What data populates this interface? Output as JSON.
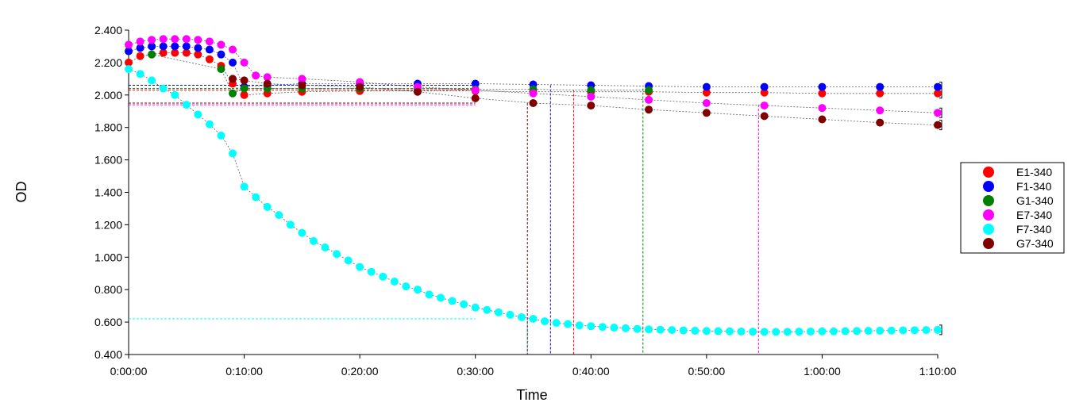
{
  "chart_data": {
    "type": "scatter",
    "title": "",
    "xlabel": "Time",
    "ylabel": "OD",
    "xlim": [
      0,
      70
    ],
    "ylim": [
      0.4,
      2.4
    ],
    "grid": false,
    "legend_position": "right",
    "x_ticks": [
      {
        "value": 0,
        "label": "0:00:00"
      },
      {
        "value": 10,
        "label": "0:10:00"
      },
      {
        "value": 20,
        "label": "0:20:00"
      },
      {
        "value": 30,
        "label": "0:30:00"
      },
      {
        "value": 40,
        "label": "0:40:00"
      },
      {
        "value": 50,
        "label": "0:50:00"
      },
      {
        "value": 60,
        "label": "1:00:00"
      },
      {
        "value": 70,
        "label": "1:10:00"
      }
    ],
    "y_ticks": [
      {
        "value": 0.4,
        "label": "0.400"
      },
      {
        "value": 0.6,
        "label": "0.600"
      },
      {
        "value": 0.8,
        "label": "0.800"
      },
      {
        "value": 1.0,
        "label": "1.000"
      },
      {
        "value": 1.2,
        "label": "1.200"
      },
      {
        "value": 1.4,
        "label": "1.400"
      },
      {
        "value": 1.6,
        "label": "1.600"
      },
      {
        "value": 1.8,
        "label": "1.800"
      },
      {
        "value": 2.0,
        "label": "2.000"
      },
      {
        "value": 2.2,
        "label": "2.200"
      },
      {
        "value": 2.4,
        "label": "2.400"
      }
    ],
    "series": [
      {
        "name": "E1-340",
        "color": "#ff0000",
        "x": [
          0,
          1,
          2,
          3,
          4,
          5,
          6,
          7,
          8,
          9,
          10,
          12,
          15,
          20,
          25,
          30,
          35,
          40,
          45,
          50,
          55,
          60,
          65,
          70
        ],
        "y": [
          2.2,
          2.24,
          2.25,
          2.26,
          2.26,
          2.26,
          2.25,
          2.22,
          2.18,
          2.07,
          2.0,
          2.01,
          2.02,
          2.025,
          2.025,
          2.025,
          2.02,
          2.02,
          2.02,
          2.015,
          2.015,
          2.01,
          2.01,
          2.01
        ],
        "threshold": 2.03,
        "threshold_x": 38.5
      },
      {
        "name": "F1-340",
        "color": "#0000ff",
        "x": [
          0,
          1,
          2,
          3,
          4,
          5,
          6,
          7,
          8,
          9,
          10,
          12,
          15,
          20,
          25,
          30,
          35,
          40,
          45,
          50,
          55,
          60,
          65,
          70
        ],
        "y": [
          2.27,
          2.29,
          2.3,
          2.3,
          2.3,
          2.3,
          2.29,
          2.28,
          2.25,
          2.2,
          2.05,
          2.06,
          2.07,
          2.07,
          2.07,
          2.07,
          2.065,
          2.06,
          2.055,
          2.05,
          2.05,
          2.05,
          2.05,
          2.05
        ],
        "threshold": 2.06,
        "threshold_x": 36.5
      },
      {
        "name": "G1-340",
        "color": "#008000",
        "x": [
          2,
          8,
          9,
          10,
          12,
          15,
          20,
          25,
          30,
          35,
          40,
          45
        ],
        "y": [
          2.25,
          2.16,
          2.01,
          2.04,
          2.04,
          2.04,
          2.04,
          2.04,
          2.035,
          2.035,
          2.03,
          2.03
        ],
        "threshold": 2.04,
        "threshold_x": 44.5
      },
      {
        "name": "E7-340",
        "color": "#ff00ff",
        "x": [
          0,
          1,
          2,
          3,
          4,
          5,
          6,
          7,
          8,
          9,
          10,
          11,
          12,
          15,
          20,
          25,
          30,
          35,
          40,
          45,
          50,
          55,
          60,
          65,
          70
        ],
        "y": [
          2.31,
          2.33,
          2.34,
          2.345,
          2.345,
          2.345,
          2.34,
          2.33,
          2.31,
          2.28,
          2.2,
          2.12,
          2.11,
          2.1,
          2.08,
          2.05,
          2.03,
          2.01,
          1.99,
          1.97,
          1.95,
          1.935,
          1.92,
          1.905,
          1.89
        ],
        "threshold": 1.94,
        "threshold_x": 54.5
      },
      {
        "name": "F7-340",
        "color": "#00ffff",
        "x": [
          0,
          1,
          2,
          3,
          4,
          5,
          6,
          7,
          8,
          9,
          10,
          11,
          12,
          13,
          14,
          15,
          16,
          17,
          18,
          19,
          20,
          21,
          22,
          23,
          24,
          25,
          26,
          27,
          28,
          29,
          30,
          31,
          32,
          33,
          34,
          35,
          36,
          37,
          38,
          39,
          40,
          41,
          42,
          43,
          44,
          45,
          46,
          47,
          48,
          49,
          50,
          51,
          52,
          53,
          54,
          55,
          56,
          57,
          58,
          59,
          60,
          61,
          62,
          63,
          64,
          65,
          66,
          67,
          68,
          69,
          70
        ],
        "y": [
          2.16,
          2.13,
          2.09,
          2.04,
          2.0,
          1.94,
          1.88,
          1.82,
          1.75,
          1.64,
          1.435,
          1.37,
          1.31,
          1.26,
          1.2,
          1.15,
          1.1,
          1.06,
          1.02,
          0.98,
          0.94,
          0.91,
          0.88,
          0.85,
          0.82,
          0.8,
          0.77,
          0.75,
          0.73,
          0.71,
          0.69,
          0.675,
          0.66,
          0.645,
          0.63,
          0.62,
          0.605,
          0.595,
          0.588,
          0.58,
          0.575,
          0.57,
          0.566,
          0.562,
          0.558,
          0.555,
          0.553,
          0.551,
          0.549,
          0.547,
          0.545,
          0.544,
          0.543,
          0.542,
          0.541,
          0.54,
          0.54,
          0.54,
          0.541,
          0.542,
          0.543,
          0.543,
          0.544,
          0.545,
          0.546,
          0.547,
          0.548,
          0.549,
          0.55,
          0.551,
          0.552
        ],
        "threshold": 0.62,
        "threshold_x": 34.5
      },
      {
        "name": "G7-340",
        "color": "#800000",
        "x": [
          9,
          10,
          12,
          15,
          20,
          25,
          30,
          35,
          40,
          45,
          50,
          55,
          60,
          65,
          70
        ],
        "y": [
          2.1,
          2.09,
          2.07,
          2.06,
          2.05,
          2.02,
          1.98,
          1.95,
          1.935,
          1.91,
          1.89,
          1.87,
          1.85,
          1.83,
          1.815
        ],
        "threshold": 1.95,
        "threshold_x": 34.5
      }
    ]
  }
}
